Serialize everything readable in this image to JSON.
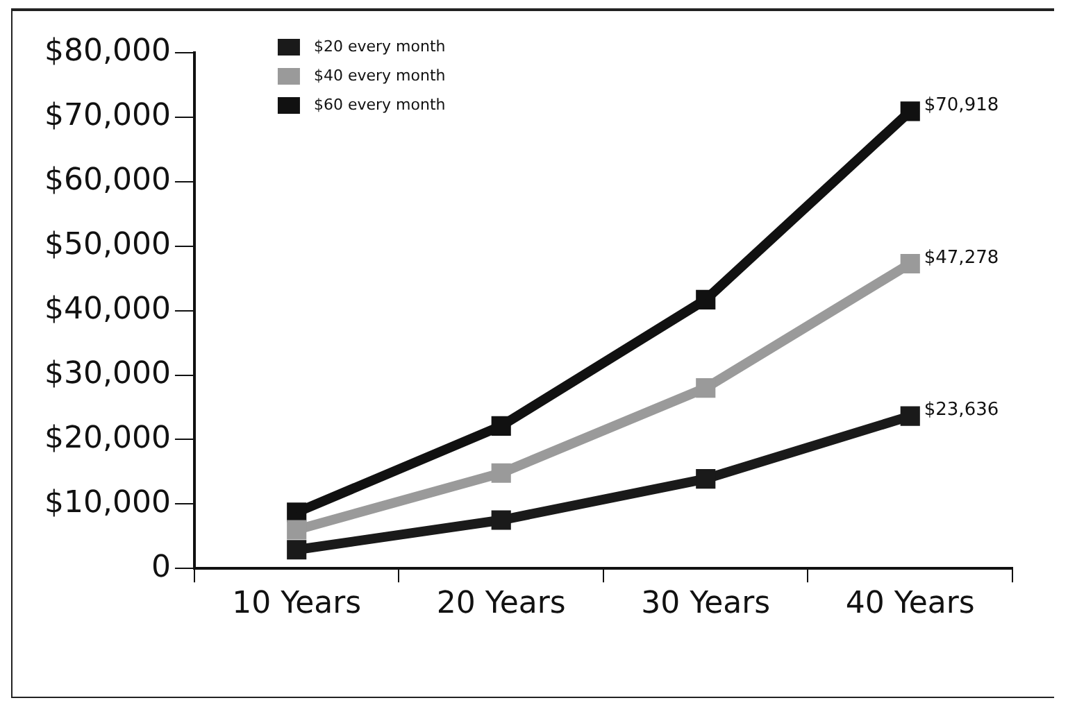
{
  "chart_data": {
    "type": "line",
    "categories": [
      "10 Years",
      "20 Years",
      "30 Years",
      "40 Years"
    ],
    "series": [
      {
        "name": "$20 every month",
        "color": "#1a1a1a",
        "values": [
          2900,
          7500,
          13900,
          23636
        ],
        "value_labels": [
          null,
          null,
          null,
          "$23,636"
        ]
      },
      {
        "name": "$40 every month",
        "color": "#9a9a9a",
        "values": [
          6000,
          14800,
          28000,
          47278
        ],
        "value_labels": [
          null,
          null,
          null,
          "$47,278"
        ]
      },
      {
        "name": "$60 every month",
        "color": "#111111",
        "values": [
          8700,
          22100,
          41700,
          70918
        ],
        "value_labels": [
          null,
          null,
          null,
          "$70,918"
        ]
      }
    ],
    "ylim": [
      0,
      80000
    ],
    "yticks": [
      {
        "value": 0,
        "label": "0"
      },
      {
        "value": 10000,
        "label": "$10,000"
      },
      {
        "value": 20000,
        "label": "$20,000"
      },
      {
        "value": 30000,
        "label": "$30,000"
      },
      {
        "value": 40000,
        "label": "$40,000"
      },
      {
        "value": 50000,
        "label": "$50,000"
      },
      {
        "value": 60000,
        "label": "$60,000"
      },
      {
        "value": 70000,
        "label": "$70,000"
      },
      {
        "value": 80000,
        "label": "$80,000"
      }
    ],
    "grid": false,
    "legend": "top left",
    "marker": "square",
    "line_style": "solid"
  }
}
